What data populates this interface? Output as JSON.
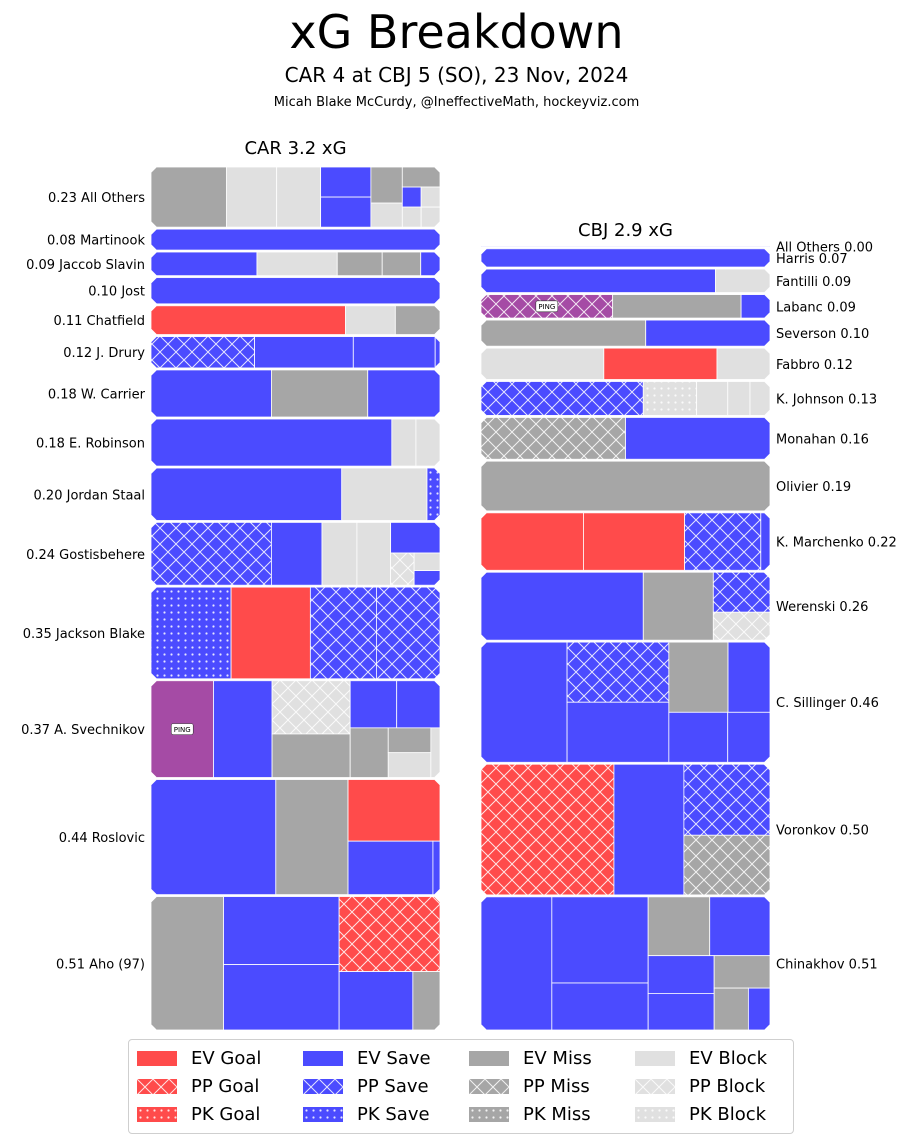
{
  "header": {
    "title": "xG Breakdown",
    "subtitle": "CAR 4 at CBJ 5 (SO), 23 Nov, 2024",
    "credit": "Micah Blake McCurdy, @IneffectiveMath, hockeyviz.com"
  },
  "colors": {
    "goal": "#ff4b4b",
    "save": "#4b4bff",
    "miss": "#a6a6a6",
    "block": "#e0e0e0",
    "ping": "#a54ba5"
  },
  "legend": {
    "items": [
      {
        "label": "EV Goal",
        "shot": "goal",
        "strength": "EV"
      },
      {
        "label": "PP Goal",
        "shot": "goal",
        "strength": "PP"
      },
      {
        "label": "PK Goal",
        "shot": "goal",
        "strength": "PK"
      },
      {
        "label": "EV Save",
        "shot": "save",
        "strength": "EV"
      },
      {
        "label": "PP Save",
        "shot": "save",
        "strength": "PP"
      },
      {
        "label": "PK Save",
        "shot": "save",
        "strength": "PK"
      },
      {
        "label": "EV Miss",
        "shot": "miss",
        "strength": "EV"
      },
      {
        "label": "PP Miss",
        "shot": "miss",
        "strength": "PP"
      },
      {
        "label": "PK Miss",
        "shot": "miss",
        "strength": "PK"
      },
      {
        "label": "EV Block",
        "shot": "block",
        "strength": "EV"
      },
      {
        "label": "PP Block",
        "shot": "block",
        "strength": "PP"
      },
      {
        "label": "PK Block",
        "shot": "block",
        "strength": "PK"
      }
    ]
  },
  "chart_data": {
    "type": "treemap",
    "ping_label": "PING",
    "teams": [
      {
        "title": "CAR 3.2 xG",
        "total_xg": 3.2,
        "label_side": "left",
        "players": [
          {
            "label": "0.23 All Others",
            "xg": 0.23,
            "shots": [
              {
                "t": "miss",
                "s": "EV",
                "w": 0.06
              },
              {
                "t": "block",
                "s": "EV",
                "w": 0.035
              },
              {
                "t": "block",
                "s": "EV",
                "w": 0.04
              },
              {
                "t": "save",
                "s": "EV",
                "w": 0.02
              },
              {
                "t": "miss",
                "s": "EV",
                "w": 0.015
              },
              {
                "t": "block",
                "s": "EV",
                "w": 0.01
              },
              {
                "t": "save",
                "s": "EV",
                "w": 0.005
              },
              {
                "t": "block",
                "s": "EV",
                "w": 0.005
              },
              {
                "t": "block",
                "s": "EV",
                "w": 0.005
              },
              {
                "t": "save",
                "s": "EV",
                "w": 0.02
              },
              {
                "t": "miss",
                "s": "EV",
                "w": 0.01
              },
              {
                "t": "block",
                "s": "EV",
                "w": 0.005
              }
            ]
          },
          {
            "label": "0.08 Martinook",
            "xg": 0.08,
            "shots": [
              {
                "t": "save",
                "s": "EV",
                "w": 0.08
              }
            ]
          },
          {
            "label": "0.09 Jaccob Slavin",
            "xg": 0.09,
            "shots": [
              {
                "t": "save",
                "s": "EV",
                "w": 0.033
              },
              {
                "t": "block",
                "s": "EV",
                "w": 0.025
              },
              {
                "t": "miss",
                "s": "EV",
                "w": 0.014
              },
              {
                "t": "miss",
                "s": "EV",
                "w": 0.012
              },
              {
                "t": "save",
                "s": "EV",
                "w": 0.006
              }
            ]
          },
          {
            "label": "0.10 Jost",
            "xg": 0.1,
            "shots": [
              {
                "t": "save",
                "s": "EV",
                "w": 0.1
              }
            ]
          },
          {
            "label": "0.11 Chatfield",
            "xg": 0.11,
            "shots": [
              {
                "t": "goal",
                "s": "EV",
                "w": 0.074
              },
              {
                "t": "block",
                "s": "EV",
                "w": 0.019
              },
              {
                "t": "miss",
                "s": "EV",
                "w": 0.017
              }
            ]
          },
          {
            "label": "0.12 J. Drury",
            "xg": 0.12,
            "shots": [
              {
                "t": "save",
                "s": "PP",
                "w": 0.043
              },
              {
                "t": "save",
                "s": "EV",
                "w": 0.041
              },
              {
                "t": "save",
                "s": "EV",
                "w": 0.034
              },
              {
                "t": "save",
                "s": "EV",
                "w": 0.002
              }
            ]
          },
          {
            "label": "0.18 W. Carrier",
            "xg": 0.18,
            "shots": [
              {
                "t": "save",
                "s": "EV",
                "w": 0.075
              },
              {
                "t": "miss",
                "s": "EV",
                "w": 0.06
              },
              {
                "t": "save",
                "s": "EV",
                "w": 0.045
              }
            ]
          },
          {
            "label": "0.18 E. Robinson",
            "xg": 0.18,
            "shots": [
              {
                "t": "save",
                "s": "EV",
                "w": 0.15
              },
              {
                "t": "block",
                "s": "EV",
                "w": 0.015
              },
              {
                "t": "block",
                "s": "EV",
                "w": 0.015
              }
            ]
          },
          {
            "label": "0.20 Jordan Staal",
            "xg": 0.2,
            "shots": [
              {
                "t": "save",
                "s": "EV",
                "w": 0.132
              },
              {
                "t": "block",
                "s": "EV",
                "w": 0.059
              },
              {
                "t": "save",
                "s": "PK",
                "w": 0.009
              }
            ]
          },
          {
            "label": "0.24 Gostisbehere",
            "xg": 0.24,
            "shots": [
              {
                "t": "save",
                "s": "PP",
                "w": 0.1
              },
              {
                "t": "save",
                "s": "EV",
                "w": 0.042
              },
              {
                "t": "block",
                "s": "EV",
                "w": 0.029
              },
              {
                "t": "save",
                "s": "EV",
                "w": 0.02
              },
              {
                "t": "block",
                "s": "EV",
                "w": 0.028
              },
              {
                "t": "save",
                "s": "EV",
                "w": 0.005
              },
              {
                "t": "block",
                "s": "EV",
                "w": 0.006
              },
              {
                "t": "block",
                "s": "PP",
                "w": 0.01
              }
            ]
          },
          {
            "label": "0.35 Jackson Blake",
            "xg": 0.35,
            "shots": [
              {
                "t": "save",
                "s": "PK",
                "w": 0.097
              },
              {
                "t": "goal",
                "s": "EV",
                "w": 0.096
              },
              {
                "t": "save",
                "s": "PP",
                "w": 0.08
              },
              {
                "t": "save",
                "s": "PP",
                "w": 0.077
              }
            ]
          },
          {
            "label": "0.37 A. Svechnikov",
            "xg": 0.37,
            "shots": [
              {
                "t": "ping",
                "s": "EV",
                "w": 0.08
              },
              {
                "t": "save",
                "s": "EV",
                "w": 0.075
              },
              {
                "t": "block",
                "s": "PP",
                "w": 0.055
              },
              {
                "t": "save",
                "s": "EV",
                "w": 0.027
              },
              {
                "t": "block",
                "s": "EV",
                "w": 0.006
              },
              {
                "t": "miss",
                "s": "EV",
                "w": 0.014
              },
              {
                "t": "block",
                "s": "EV",
                "w": 0.014
              },
              {
                "t": "miss",
                "s": "EV",
                "w": 0.045
              },
              {
                "t": "miss",
                "s": "EV",
                "w": 0.025
              },
              {
                "t": "save",
                "s": "EV",
                "w": 0.029
              }
            ]
          },
          {
            "label": "0.44 Roslovic",
            "xg": 0.44,
            "shots": [
              {
                "t": "save",
                "s": "EV",
                "w": 0.19
              },
              {
                "t": "miss",
                "s": "EV",
                "w": 0.11
              },
              {
                "t": "save",
                "s": "EV",
                "w": 0.06
              },
              {
                "t": "save",
                "s": "EV",
                "w": 0.005
              },
              {
                "t": "goal",
                "s": "EV",
                "w": 0.075
              }
            ]
          },
          {
            "label": "0.51 Aho (97)",
            "xg": 0.51,
            "shots": [
              {
                "t": "miss",
                "s": "EV",
                "w": 0.128
              },
              {
                "t": "save",
                "s": "EV",
                "w": 0.1
              },
              {
                "t": "goal",
                "s": "PP",
                "w": 0.1
              },
              {
                "t": "save",
                "s": "EV",
                "w": 0.057
              },
              {
                "t": "miss",
                "s": "EV",
                "w": 0.021
              },
              {
                "t": "save",
                "s": "EV",
                "w": 0.104
              }
            ]
          }
        ]
      },
      {
        "title": "CBJ 2.9 xG",
        "total_xg": 2.9,
        "label_side": "right",
        "players": [
          {
            "label": "All Others 0.00",
            "xg": 0.0,
            "shots": [
              {
                "t": "save",
                "s": "EV",
                "w": 0.004
              }
            ]
          },
          {
            "label": "Harris 0.07",
            "xg": 0.07,
            "shots": [
              {
                "t": "save",
                "s": "EV",
                "w": 0.07
              }
            ]
          },
          {
            "label": "Fantilli 0.09",
            "xg": 0.09,
            "shots": [
              {
                "t": "block",
                "s": "EV",
                "w": 0.017
              },
              {
                "t": "save",
                "s": "EV",
                "w": 0.073
              }
            ]
          },
          {
            "label": "Labanc 0.09",
            "xg": 0.09,
            "shots": [
              {
                "t": "save",
                "s": "EV",
                "w": 0.009
              },
              {
                "t": "miss",
                "s": "EV",
                "w": 0.04
              },
              {
                "t": "ping",
                "s": "PP",
                "w": 0.041
              }
            ]
          },
          {
            "label": "Severson 0.10",
            "xg": 0.1,
            "shots": [
              {
                "t": "save",
                "s": "EV",
                "w": 0.043
              },
              {
                "t": "miss",
                "s": "EV",
                "w": 0.057
              }
            ]
          },
          {
            "label": "Fabbro 0.12",
            "xg": 0.12,
            "shots": [
              {
                "t": "block",
                "s": "EV",
                "w": 0.022
              },
              {
                "t": "goal",
                "s": "EV",
                "w": 0.047
              },
              {
                "t": "block",
                "s": "EV",
                "w": 0.051
              }
            ]
          },
          {
            "label": "K. Johnson 0.13",
            "xg": 0.13,
            "shots": [
              {
                "t": "block",
                "s": "EV",
                "w": 0.009
              },
              {
                "t": "block",
                "s": "EV",
                "w": 0.01
              },
              {
                "t": "block",
                "s": "EV",
                "w": 0.014
              },
              {
                "t": "block",
                "s": "PK",
                "w": 0.024
              },
              {
                "t": "save",
                "s": "PP",
                "w": 0.073
              }
            ]
          },
          {
            "label": "Monahan 0.16",
            "xg": 0.16,
            "shots": [
              {
                "t": "miss",
                "s": "PP",
                "w": 0.08
              },
              {
                "t": "save",
                "s": "EV",
                "w": 0.08
              }
            ]
          },
          {
            "label": "Olivier 0.19",
            "xg": 0.19,
            "shots": [
              {
                "t": "miss",
                "s": "EV",
                "w": 0.19
              }
            ]
          },
          {
            "label": "K. Marchenko 0.22",
            "xg": 0.22,
            "shots": [
              {
                "t": "save",
                "s": "EV",
                "w": 0.007
              },
              {
                "t": "save",
                "s": "PP",
                "w": 0.058
              },
              {
                "t": "goal",
                "s": "EV",
                "w": 0.077
              },
              {
                "t": "goal",
                "s": "EV",
                "w": 0.078
              }
            ]
          },
          {
            "label": "Werenski 0.26",
            "xg": 0.26,
            "shots": [
              {
                "t": "block",
                "s": "PP",
                "w": 0.021
              },
              {
                "t": "save",
                "s": "PP",
                "w": 0.03
              },
              {
                "t": "miss",
                "s": "EV",
                "w": 0.063
              },
              {
                "t": "save",
                "s": "EV",
                "w": 0.146
              }
            ]
          },
          {
            "label": "C. Sillinger 0.46",
            "xg": 0.46,
            "shots": [
              {
                "t": "save",
                "s": "EV",
                "w": 0.028
              },
              {
                "t": "miss",
                "s": "EV",
                "w": 0.055
              },
              {
                "t": "save",
                "s": "EV",
                "w": 0.039
              },
              {
                "t": "save",
                "s": "EV",
                "w": 0.039
              },
              {
                "t": "save",
                "s": "PP",
                "w": 0.081
              },
              {
                "t": "save",
                "s": "EV",
                "w": 0.081
              },
              {
                "t": "save",
                "s": "EV",
                "w": 0.137
              }
            ]
          },
          {
            "label": "Voronkov 0.50",
            "xg": 0.5,
            "shots": [
              {
                "t": "miss",
                "s": "PP",
                "w": 0.068
              },
              {
                "t": "save",
                "s": "PP",
                "w": 0.081
              },
              {
                "t": "save",
                "s": "EV",
                "w": 0.121
              },
              {
                "t": "goal",
                "s": "PP",
                "w": 0.23
              }
            ]
          },
          {
            "label": "Chinakhov 0.51",
            "xg": 0.51,
            "shots": [
              {
                "t": "save",
                "s": "EV",
                "w": 0.012
              },
              {
                "t": "miss",
                "s": "EV",
                "w": 0.019
              },
              {
                "t": "miss",
                "s": "EV",
                "w": 0.024
              },
              {
                "t": "save",
                "s": "EV",
                "w": 0.032
              },
              {
                "t": "save",
                "s": "EV",
                "w": 0.033
              },
              {
                "t": "save",
                "s": "EV",
                "w": 0.047
              },
              {
                "t": "miss",
                "s": "EV",
                "w": 0.048
              },
              {
                "t": "save",
                "s": "EV",
                "w": 0.06
              },
              {
                "t": "save",
                "s": "EV",
                "w": 0.11
              },
              {
                "t": "save",
                "s": "EV",
                "w": 0.125
              }
            ]
          }
        ]
      }
    ]
  }
}
